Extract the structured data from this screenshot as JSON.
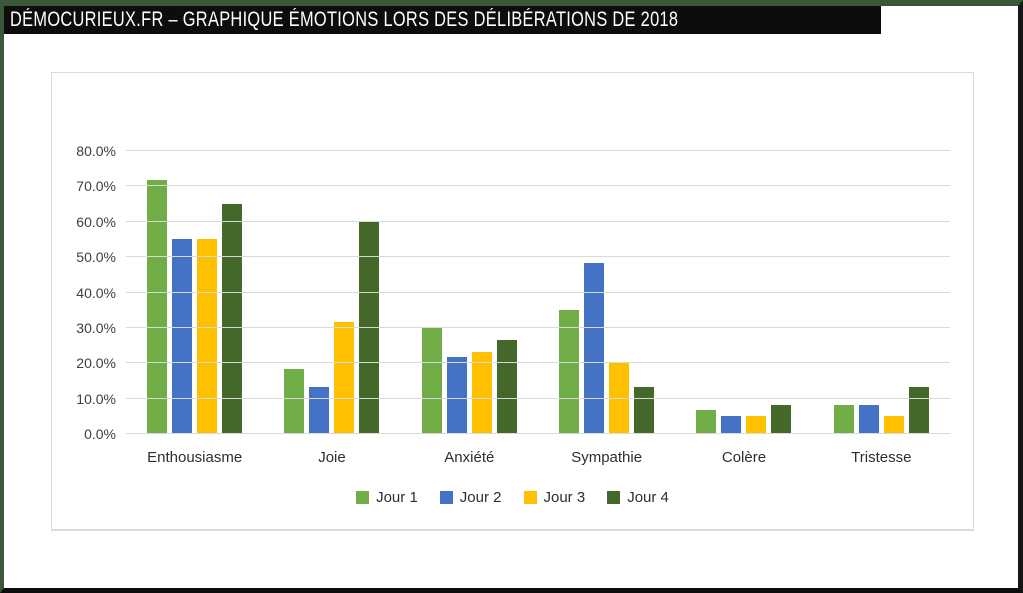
{
  "page": {
    "title": "DÉMOCURIEUX.FR – GRAPHIQUE ÉMOTIONS LORS DES DÉLIBÉRATIONS DE 2018"
  },
  "colors": {
    "title_bar_bg": "#0D0D0D",
    "title_text": "#FFFFFF",
    "frame_green": "#3B5638",
    "frame_dark": "#0D0D0D",
    "gridline": "#D9D9D9",
    "axis_text": "#3F3F3F",
    "jour1": "#70AD47",
    "jour2": "#4472C4",
    "jour3": "#FFC000",
    "jour4": "#44682A"
  },
  "chart_data": {
    "type": "bar",
    "title": "",
    "categories": [
      "Enthousiasme",
      "Joie",
      "Anxiété",
      "Sympathie",
      "Colère",
      "Tristesse"
    ],
    "series": [
      {
        "name": "Jour 1",
        "color": "#70AD47",
        "values": [
          71.7,
          18.3,
          30.0,
          35.0,
          6.7,
          8.3
        ]
      },
      {
        "name": "Jour 2",
        "color": "#4472C4",
        "values": [
          55.0,
          13.3,
          21.7,
          48.3,
          5.0,
          8.3
        ]
      },
      {
        "name": "Jour 3",
        "color": "#FFC000",
        "values": [
          55.0,
          31.7,
          23.3,
          20.0,
          5.0,
          5.0
        ]
      },
      {
        "name": "Jour 4",
        "color": "#44682A",
        "values": [
          65.0,
          60.0,
          26.7,
          13.3,
          8.3,
          13.3
        ]
      }
    ],
    "ylim": [
      0,
      80
    ],
    "y_ticks": [
      "0.0%",
      "10.0%",
      "20.0%",
      "30.0%",
      "40.0%",
      "50.0%",
      "60.0%",
      "70.0%",
      "80.0%"
    ],
    "xlabel": "",
    "ylabel": "",
    "grid": true,
    "legend_position": "bottom"
  }
}
